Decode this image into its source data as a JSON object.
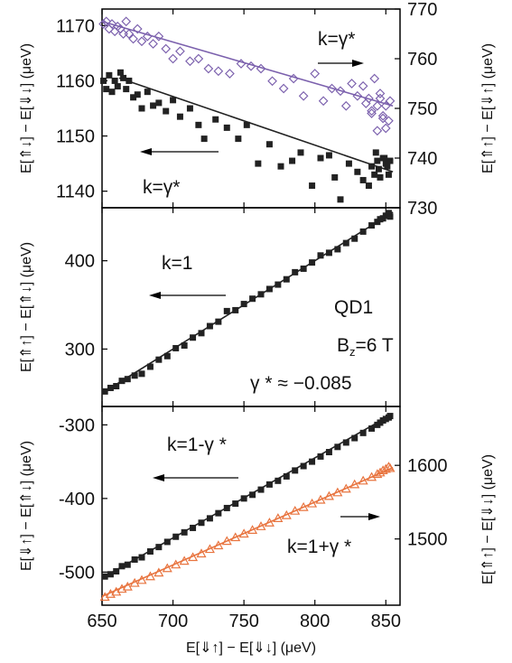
{
  "x_axis": {
    "label": "E[⇓↑] − E[⇓↓]  (μeV)",
    "lim": [
      650,
      860
    ],
    "ticks": [
      650,
      700,
      750,
      800,
      850
    ]
  },
  "colors": {
    "black_series": "#222222",
    "purple_series": "#7b60ad",
    "orange_series": "#e8743f",
    "axis": "#000000"
  },
  "panels": {
    "top": {
      "left_axis": {
        "label": "E[⇑↓] − E[⇓↓] (μeV)",
        "lim": [
          1137,
          1173
        ],
        "ticks": [
          1140,
          1150,
          1160,
          1170
        ]
      },
      "right_axis": {
        "label": "E[⇑↑] − E[⇓↑] (μeV)",
        "lim": [
          730,
          770
        ],
        "ticks": [
          730,
          740,
          750,
          760,
          770
        ]
      },
      "annotations": {
        "k_right": "k=γ*",
        "k_left": "k=γ*"
      }
    },
    "middle": {
      "left_axis": {
        "label": "E[⇑↑] − E[⇑↓] (μeV)",
        "lim": [
          235,
          460
        ],
        "ticks": [
          300,
          400
        ]
      },
      "annotations": {
        "k": "k=1",
        "dot": "QD1",
        "b_prefix": "B",
        "b_sub": "z",
        "b_suffix": "=6 T",
        "gamma": "γ * ≈ −0.085"
      }
    },
    "bottom": {
      "left_axis": {
        "label": "E[⇓↑] − E[⇑↓] (μeV)",
        "lim": [
          -545,
          -275
        ],
        "ticks": [
          -500,
          -400,
          -300
        ]
      },
      "right_axis": {
        "label": "E[⇑↑] − E[⇓↓] (μeV)",
        "lim": [
          1410,
          1680
        ],
        "ticks": [
          1500,
          1600
        ]
      },
      "annotations": {
        "k_left": "k=1-γ *",
        "k_right": "k=1+γ *"
      }
    }
  },
  "chart_data": [
    {
      "type": "scatter",
      "panel": "top",
      "xlabel": "E[⇓↑] − E[⇓↓]  (μeV)",
      "ylabel": "E[⇑↓] − E[⇓↓] (μeV)",
      "y2label": "E[⇑↑] − E[⇓↑] (μeV)",
      "xlim": [
        650,
        860
      ],
      "ylim": [
        1137,
        1173
      ],
      "y2lim": [
        730,
        770
      ],
      "series": [
        {
          "axis": "right",
          "marker": "open-diamond",
          "color": "#7b60ad",
          "fit": [
            [
              650,
              767.5
            ],
            [
              855,
              750.5
            ]
          ],
          "x": [
            651,
            653,
            655,
            657,
            659,
            661,
            663,
            665,
            667,
            669,
            672,
            675,
            678,
            682,
            686,
            690,
            695,
            700,
            705,
            712,
            718,
            725,
            732,
            740,
            748,
            755,
            762,
            770,
            778,
            785,
            792,
            800,
            806,
            812,
            818,
            822,
            826,
            830,
            834,
            836,
            838,
            840,
            842,
            844,
            846,
            848,
            850,
            852,
            853,
            844,
            848,
            850,
            840,
            846
          ],
          "y": [
            767.0,
            767.5,
            766.0,
            767.0,
            765.5,
            766.5,
            766.0,
            765.0,
            767.5,
            765.0,
            764.0,
            766.0,
            763.5,
            764.5,
            763.0,
            764.5,
            762.0,
            760.0,
            761.5,
            759.5,
            760.0,
            758.0,
            757.5,
            757.0,
            759.0,
            758.5,
            758.0,
            755.5,
            754.0,
            756.0,
            752.5,
            757.0,
            751.5,
            754.0,
            753.5,
            750.5,
            755.0,
            752.5,
            754.5,
            751.0,
            752.0,
            749.5,
            756.0,
            750.5,
            753.0,
            748.5,
            750.5,
            747.5,
            751.5,
            745.5,
            748.0,
            746.0,
            749.0,
            752.0
          ]
        },
        {
          "axis": "left",
          "marker": "filled-square",
          "color": "#222222",
          "fit": [
            [
              662,
              1160.5
            ],
            [
              855,
              1143.5
            ]
          ],
          "x": [
            651,
            653,
            655,
            657,
            659,
            661,
            663,
            665,
            667,
            669,
            672,
            675,
            678,
            682,
            686,
            690,
            695,
            700,
            705,
            712,
            718,
            722,
            730,
            738,
            746,
            752,
            760,
            768,
            776,
            784,
            790,
            798,
            804,
            810,
            814,
            818,
            824,
            830,
            834,
            838,
            840,
            842,
            844,
            846,
            848,
            850,
            852,
            853,
            845,
            849,
            843,
            851
          ],
          "y": [
            1160.0,
            1158.5,
            1161.0,
            1158.0,
            1160.0,
            1159.0,
            1161.5,
            1160.5,
            1158.5,
            1160.0,
            1157.0,
            1157.5,
            1155.0,
            1158.0,
            1155.5,
            1156.0,
            1154.5,
            1156.5,
            1153.5,
            1155.0,
            1152.0,
            1149.5,
            1153.0,
            1151.5,
            1149.5,
            1152.0,
            1145.0,
            1148.5,
            1144.5,
            1145.5,
            1147.0,
            1141.0,
            1146.0,
            1146.5,
            1142.5,
            1138.5,
            1145.0,
            1143.5,
            1142.0,
            1141.0,
            1144.5,
            1143.0,
            1145.5,
            1142.5,
            1146.0,
            1145.0,
            1143.0,
            1145.5,
            1144.0,
            1146.0,
            1147.0,
            1144.5
          ]
        }
      ],
      "annotations": [
        "k=γ*",
        "k=γ*"
      ]
    },
    {
      "type": "scatter",
      "panel": "middle",
      "xlabel": "E[⇓↑] − E[⇓↓]  (μeV)",
      "ylabel": "E[⇑↑] − E[⇑↓] (μeV)",
      "xlim": [
        650,
        860
      ],
      "ylim": [
        235,
        460
      ],
      "series": [
        {
          "axis": "left",
          "marker": "filled-square",
          "color": "#222222",
          "fit": [
            [
              650,
              250
            ],
            [
              855,
              455
            ]
          ],
          "x": [
            652,
            656,
            660,
            664,
            668,
            673,
            678,
            684,
            690,
            696,
            702,
            708,
            714,
            720,
            726,
            732,
            738,
            744,
            750,
            756,
            762,
            768,
            774,
            780,
            786,
            792,
            798,
            804,
            810,
            816,
            822,
            828,
            834,
            840,
            844,
            846,
            848,
            850,
            852,
            853
          ],
          "y": [
            252,
            256,
            258,
            264,
            266,
            270,
            272,
            280,
            288,
            292,
            301,
            304,
            313,
            318,
            326,
            331,
            343,
            344,
            351,
            357,
            362,
            368,
            373,
            379,
            387,
            391,
            398,
            406,
            409,
            413,
            420,
            425,
            433,
            440,
            444,
            447,
            448,
            451,
            454,
            450
          ]
        }
      ],
      "annotations": [
        "k=1",
        "QD1",
        "B z =6 T",
        "γ * ≈ −0.085"
      ]
    },
    {
      "type": "scatter",
      "panel": "bottom",
      "xlabel": "E[⇓↑] − E[⇓↓]  (μeV)",
      "ylabel": "E[⇓↑] − E[⇑↓] (μeV)",
      "y2label": "E[⇑↑] − E[⇓↓] (μeV)",
      "xlim": [
        650,
        860
      ],
      "ylim": [
        -545,
        -275
      ],
      "y2lim": [
        1410,
        1680
      ],
      "series": [
        {
          "axis": "left",
          "marker": "filled-square",
          "color": "#222222",
          "fit": [
            [
              650,
              -508
            ],
            [
              855,
              -285
            ]
          ],
          "x": [
            652,
            656,
            660,
            664,
            668,
            673,
            678,
            684,
            690,
            696,
            702,
            708,
            714,
            720,
            726,
            732,
            738,
            744,
            750,
            756,
            762,
            768,
            774,
            780,
            786,
            792,
            798,
            804,
            810,
            816,
            822,
            828,
            834,
            840,
            844,
            846,
            848,
            850,
            852,
            853
          ],
          "y": [
            -506,
            -503,
            -499,
            -492,
            -490,
            -483,
            -480,
            -472,
            -466,
            -459,
            -452,
            -446,
            -440,
            -433,
            -427,
            -420,
            -413,
            -407,
            -400,
            -395,
            -388,
            -381,
            -376,
            -370,
            -362,
            -356,
            -350,
            -343,
            -337,
            -330,
            -324,
            -318,
            -311,
            -305,
            -300,
            -297,
            -294,
            -292,
            -290,
            -288
          ]
        },
        {
          "axis": "right",
          "marker": "open-triangle",
          "color": "#e8743f",
          "fit": [
            [
              650,
              1422
            ],
            [
              855,
              1597
            ]
          ],
          "x": [
            652,
            656,
            660,
            664,
            668,
            673,
            678,
            684,
            690,
            696,
            702,
            708,
            714,
            720,
            726,
            732,
            738,
            744,
            750,
            756,
            762,
            768,
            774,
            780,
            786,
            792,
            798,
            804,
            810,
            816,
            822,
            828,
            834,
            840,
            844,
            846,
            848,
            850,
            852,
            853
          ],
          "y": [
            1421,
            1425,
            1428,
            1432,
            1435,
            1440,
            1444,
            1449,
            1454,
            1460,
            1465,
            1470,
            1475,
            1480,
            1486,
            1491,
            1497,
            1502,
            1507,
            1512,
            1517,
            1522,
            1528,
            1532,
            1538,
            1543,
            1548,
            1553,
            1558,
            1563,
            1568,
            1574,
            1579,
            1584,
            1588,
            1590,
            1593,
            1595,
            1598,
            1596
          ]
        }
      ],
      "annotations": [
        "k=1-γ *",
        "k=1+γ *"
      ]
    }
  ]
}
